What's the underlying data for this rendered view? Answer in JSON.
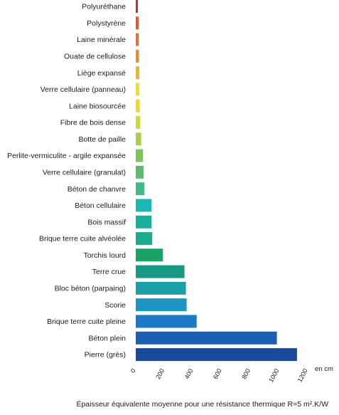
{
  "chart_data": {
    "type": "bar",
    "orientation": "horizontal",
    "categories": [
      "Polyuréthane",
      "Polystyrène",
      "Laine minérale",
      "Ouate de cellulose",
      "Liège expansé",
      "Verre cellulaire (panneau)",
      "Laine biosourcée",
      "Fibre de bois dense",
      "Botte de paille",
      "Perlite-vermiculite - argile expansée",
      "Verre cellulaire (granulat)",
      "Béton de chanvre",
      "Béton cellulaire",
      "Bois massif",
      "Brique terre cuite alvéolée",
      "Torchis lourd",
      "Terre crue",
      "Bloc béton (parpaing)",
      "Scorie",
      "Brique terre cuite pleine",
      "Béton plein",
      "Pierre (grès)"
    ],
    "values": [
      12,
      20,
      20,
      22,
      25,
      25,
      28,
      30,
      38,
      50,
      55,
      60,
      110,
      110,
      115,
      190,
      340,
      350,
      355,
      425,
      985,
      1125
    ],
    "colors": [
      "#d7263d",
      "#e8562a",
      "#ec6d2c",
      "#ef8a2b",
      "#f1b51f",
      "#f5df1b",
      "#e6dd1e",
      "#cddb32",
      "#a7cf4a",
      "#7fc45b",
      "#5dbb70",
      "#3fb98a",
      "#1cb7b0",
      "#16b19a",
      "#18ad8e",
      "#17a266",
      "#169a85",
      "#1aa0a8",
      "#1d95c2",
      "#1a7ac7",
      "#1b60b4",
      "#1a4a9c"
    ],
    "xlim": [
      0,
      1200
    ],
    "xticks": [
      "0",
      "200",
      "400",
      "600",
      "800",
      "1000",
      "1200"
    ],
    "xunit": "en cm",
    "caption": "Épaisseur équivalente moyenne pour une résistance thermique R=5 m².K/W",
    "grid": false
  }
}
